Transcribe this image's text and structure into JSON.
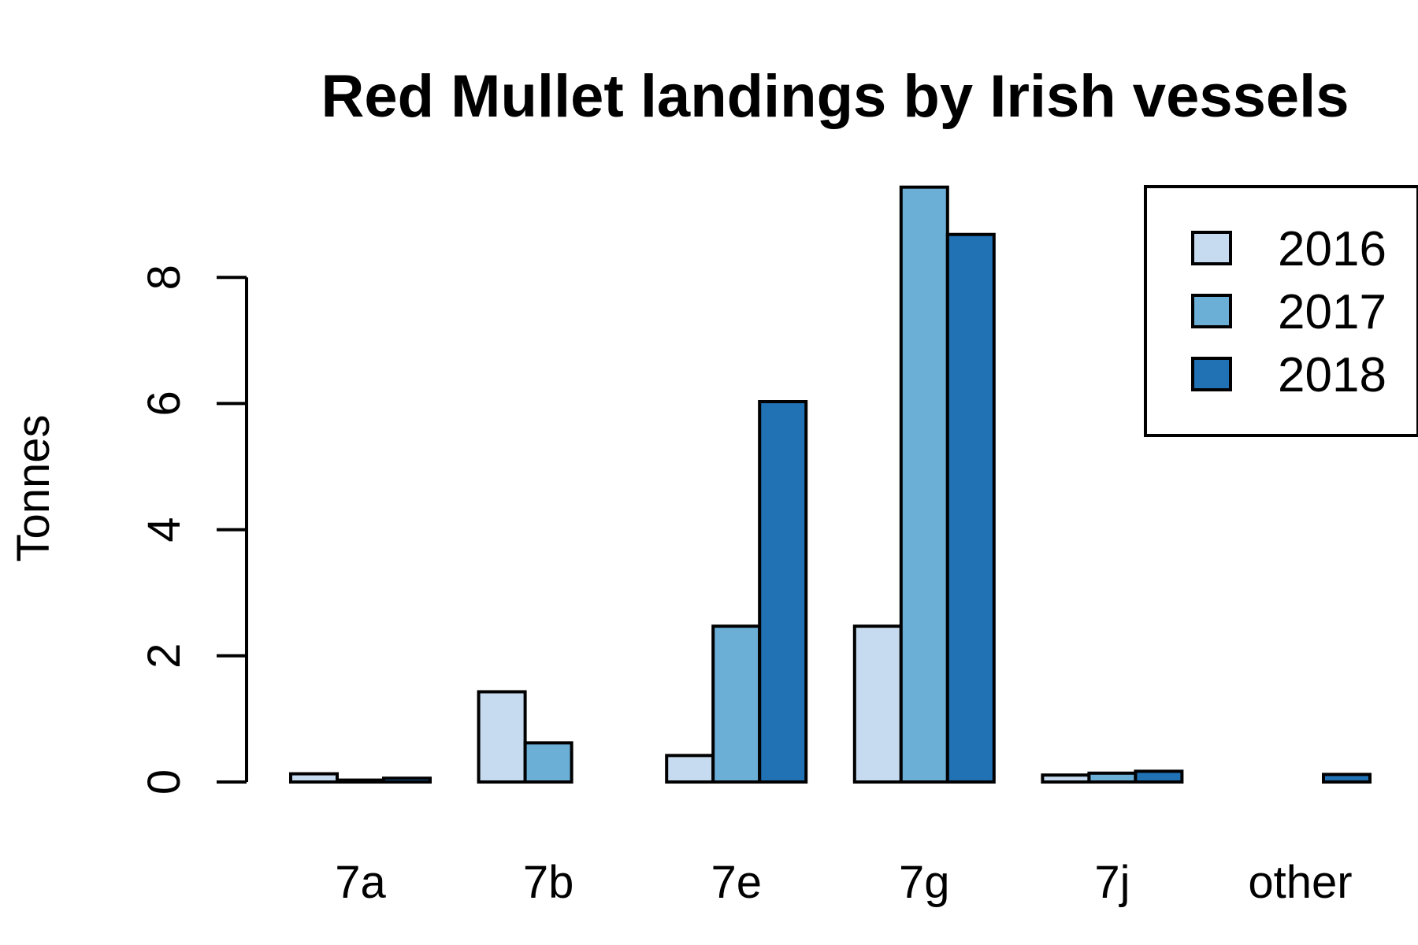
{
  "chart_data": {
    "type": "bar",
    "title": "Red Mullet landings by Irish vessels",
    "xlabel": "",
    "ylabel": "Tonnes",
    "categories": [
      "7a",
      "7b",
      "7e",
      "7g",
      "7j",
      "other"
    ],
    "series": [
      {
        "name": "2016",
        "color": "#c6dbef",
        "values": [
          0.13,
          1.43,
          0.42,
          2.47,
          0.11,
          0.0
        ]
      },
      {
        "name": "2017",
        "color": "#6baed6",
        "values": [
          0.03,
          0.62,
          2.47,
          9.43,
          0.14,
          0.0
        ]
      },
      {
        "name": "2018",
        "color": "#2171b5",
        "values": [
          0.06,
          0.0,
          6.03,
          8.68,
          0.17,
          0.12
        ]
      }
    ],
    "yticks": [
      "0",
      "2",
      "4",
      "6",
      "8"
    ],
    "ylim": [
      0,
      9.43
    ],
    "legend_position": "top-right",
    "grid": false
  }
}
